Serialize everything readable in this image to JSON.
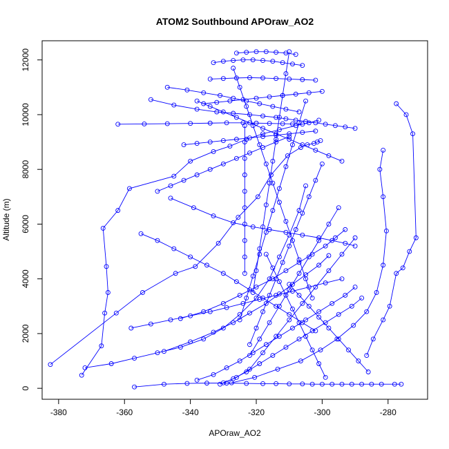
{
  "chart_data": {
    "type": "scatter",
    "mode": "lines+markers",
    "title": "ATOM2 Southbound APOraw_AO2",
    "xlabel": "APOraw_AO2",
    "ylabel": "Altitude (m)",
    "xlim": [
      -385,
      -268
    ],
    "ylim": [
      -400,
      12700
    ],
    "x_ticks": [
      {
        "value": -380,
        "label": "-380"
      },
      {
        "value": -360,
        "label": "-360"
      },
      {
        "value": -340,
        "label": "-340"
      },
      {
        "value": -320,
        "label": "-320"
      },
      {
        "value": -300,
        "label": "-300"
      },
      {
        "value": -280,
        "label": "-280"
      }
    ],
    "y_ticks": [
      {
        "value": 0,
        "label": "0"
      },
      {
        "value": 2000,
        "label": "2000"
      },
      {
        "value": 4000,
        "label": "4000"
      },
      {
        "value": 6000,
        "label": "6000"
      },
      {
        "value": 8000,
        "label": "8000"
      },
      {
        "value": 10000,
        "label": "10000"
      },
      {
        "value": 12000,
        "label": "12000"
      }
    ],
    "grid": false,
    "color": "#0000ff",
    "series": [
      {
        "x": [
          -382.5,
          -362.5,
          -354.5,
          -344.5,
          -338.5,
          -331.5,
          -325.5,
          -319.5,
          -315.5,
          -310.5,
          -306.5,
          -304.5,
          -302.5,
          -301.5,
          -300.5
        ],
        "y": [
          870,
          2750,
          3500,
          4200,
          4450,
          5300,
          6250,
          7000,
          7800,
          8500,
          8800,
          8900,
          8950,
          9000,
          9050
        ]
      },
      {
        "x": [
          -373,
          -367,
          -366,
          -365,
          -365.5,
          -366.5,
          -362,
          -358.5,
          -345,
          -340,
          -333,
          -328,
          -323,
          -318,
          -313,
          -308,
          -304,
          -301
        ],
        "y": [
          480,
          1550,
          2750,
          3500,
          4450,
          5850,
          6500,
          7300,
          7750,
          8300,
          8650,
          8850,
          9100,
          9300,
          9450,
          9600,
          9700,
          9800
        ]
      },
      {
        "x": [
          -372,
          -364,
          -357,
          -350,
          -343,
          -336,
          -330,
          -325,
          -320,
          -316,
          -313,
          -310,
          -307,
          -305
        ],
        "y": [
          750,
          900,
          1100,
          1300,
          1500,
          1800,
          2200,
          2700,
          3300,
          4000,
          4800,
          5600,
          6500,
          7400
        ]
      },
      {
        "x": [
          -357,
          -348,
          -341,
          -335,
          -329,
          -323,
          -318,
          -314,
          -310,
          -306,
          -303,
          -300,
          -297,
          -294,
          -291,
          -288,
          -285,
          -282,
          -278,
          -276
        ],
        "y": [
          50,
          150,
          180,
          190,
          190,
          180,
          170,
          170,
          160,
          160,
          150,
          150,
          150,
          150,
          150,
          150,
          150,
          150,
          150,
          150
        ]
      },
      {
        "x": [
          -277.5,
          -274.5,
          -272.5,
          -271.5,
          -273.5,
          -275.5,
          -277.5,
          -279.5,
          -281.5,
          -284.5,
          -286.5
        ],
        "y": [
          10400,
          10000,
          9300,
          5500,
          5000,
          4400,
          4200,
          3000,
          2500,
          1800,
          1200
        ]
      },
      {
        "x": [
          -281.5,
          -282.5,
          -281.5,
          -280.5,
          -281.5,
          -283.5,
          -286.5,
          -290.5,
          -295.5,
          -300.5,
          -306.5,
          -313.5,
          -320.5,
          -327.5
        ],
        "y": [
          8700,
          8000,
          7000,
          5750,
          4500,
          3500,
          2800,
          2300,
          1800,
          1400,
          1000,
          700,
          400,
          200
        ]
      },
      {
        "x": [
          -352,
          -345,
          -338,
          -332,
          -327,
          -322,
          -318,
          -314,
          -311,
          -308,
          -305,
          -302,
          -299,
          -296,
          -293,
          -290
        ],
        "y": [
          10550,
          10350,
          10200,
          10100,
          10050,
          10000,
          9950,
          9900,
          9850,
          9800,
          9750,
          9700,
          9650,
          9600,
          9550,
          9500
        ]
      },
      {
        "x": [
          -362,
          -354,
          -347,
          -340,
          -334,
          -329,
          -324,
          -320,
          -316,
          -312,
          -309,
          -306
        ],
        "y": [
          9650,
          9660,
          9670,
          9680,
          9690,
          9700,
          9700,
          9690,
          9680,
          9670,
          9660,
          9650
        ]
      },
      {
        "x": [
          -333,
          -330,
          -327,
          -324,
          -321,
          -318,
          -315,
          -312,
          -309,
          -306
        ],
        "y": [
          11900,
          11950,
          11980,
          12000,
          12000,
          11980,
          11950,
          11900,
          11850,
          11800
        ]
      },
      {
        "x": [
          -326,
          -323,
          -320,
          -317,
          -314,
          -311,
          -308
        ],
        "y": [
          12250,
          12280,
          12300,
          12300,
          12280,
          12250,
          12200
        ]
      },
      {
        "x": [
          -334,
          -330,
          -326,
          -322,
          -318,
          -314,
          -310,
          -306,
          -302
        ],
        "y": [
          11300,
          11320,
          11340,
          11350,
          11340,
          11320,
          11300,
          11280,
          11260
        ]
      },
      {
        "x": [
          -336,
          -332,
          -328,
          -324,
          -320,
          -316,
          -312,
          -308,
          -304,
          -300
        ],
        "y": [
          10400,
          10450,
          10500,
          10550,
          10600,
          10650,
          10700,
          10750,
          10800,
          10850
        ]
      },
      {
        "x": [
          -342,
          -338,
          -334,
          -330,
          -326,
          -322,
          -318,
          -314,
          -310,
          -306,
          -302
        ],
        "y": [
          8900,
          8950,
          9000,
          9050,
          9100,
          9150,
          9200,
          9250,
          9300,
          9350,
          9400
        ]
      },
      {
        "x": [
          -346,
          -339,
          -333,
          -327,
          -321,
          -316,
          -311,
          -306,
          -301,
          -297,
          -293,
          -290
        ],
        "y": [
          6950,
          6600,
          6300,
          6050,
          5900,
          5800,
          5700,
          5600,
          5500,
          5400,
          5300,
          5200
        ]
      },
      {
        "x": [
          -343,
          -336,
          -330,
          -325,
          -320,
          -315,
          -311,
          -307,
          -303,
          -299,
          -296,
          -293
        ],
        "y": [
          2550,
          2800,
          3100,
          3400,
          3700,
          4000,
          4300,
          4600,
          4900,
          5200,
          5500,
          5800
        ]
      },
      {
        "x": [
          -348,
          -340,
          -333,
          -327,
          -322,
          -317,
          -313,
          -309,
          -305,
          -301,
          -298
        ],
        "y": [
          1350,
          1700,
          2050,
          2400,
          2750,
          3100,
          3450,
          3800,
          4150,
          4500,
          4850
        ]
      },
      {
        "x": [
          -338,
          -333,
          -329,
          -325,
          -321,
          -317,
          -313,
          -309,
          -305,
          -301,
          -297,
          -293,
          -290
        ],
        "y": [
          300,
          500,
          750,
          1000,
          1300,
          1600,
          1900,
          2200,
          2500,
          2800,
          3100,
          3400,
          3700
        ]
      },
      {
        "x": [
          -331,
          -327,
          -323,
          -319,
          -315,
          -311,
          -307,
          -303,
          -299,
          -295,
          -291,
          -288
        ],
        "y": [
          150,
          350,
          600,
          900,
          1200,
          1500,
          1800,
          2100,
          2400,
          2700,
          3000,
          3300
        ]
      },
      {
        "x": [
          -323.5,
          -323.5,
          -323.5,
          -323.5,
          -323.5,
          -323.5,
          -323.5,
          -323.5,
          -323.5,
          -323.5
        ],
        "y": [
          4200,
          4800,
          5400,
          6000,
          6600,
          7200,
          7800,
          8400,
          9000,
          9600
        ]
      },
      {
        "x": [
          -327,
          -325,
          -323,
          -321,
          -319,
          -317,
          -315,
          -313,
          -311,
          -309,
          -307,
          -305,
          -303
        ],
        "y": [
          11700,
          11000,
          10300,
          9600,
          8900,
          8200,
          7500,
          6800,
          6100,
          5400,
          4700,
          4000,
          3300
        ]
      },
      {
        "x": [
          -310,
          -311,
          -312,
          -313,
          -314,
          -315,
          -316,
          -317,
          -318,
          -319,
          -320,
          -321
        ],
        "y": [
          12300,
          11500,
          10700,
          9900,
          9100,
          8300,
          7500,
          6700,
          5900,
          5100,
          4300,
          3500
        ]
      },
      {
        "x": [
          -305,
          -307,
          -309,
          -311,
          -313,
          -315,
          -317,
          -319,
          -321,
          -323,
          -325
        ],
        "y": [
          10500,
          9700,
          8900,
          8100,
          7300,
          6500,
          5700,
          4900,
          4100,
          3300,
          2500
        ]
      },
      {
        "x": [
          -300,
          -302,
          -304,
          -306,
          -308,
          -310,
          -312,
          -314,
          -316,
          -318,
          -320,
          -322
        ],
        "y": [
          8200,
          7600,
          7000,
          6400,
          5800,
          5200,
          4600,
          4000,
          3400,
          2800,
          2200,
          1600
        ]
      },
      {
        "x": [
          -295,
          -298,
          -301,
          -304,
          -307,
          -310,
          -313,
          -316,
          -319,
          -322
        ],
        "y": [
          6600,
          6000,
          5400,
          4800,
          4200,
          3600,
          3000,
          2400,
          1800,
          1200
        ]
      },
      {
        "x": [
          -290,
          -294,
          -298,
          -302,
          -306,
          -310,
          -314,
          -318,
          -322,
          -326,
          -330
        ],
        "y": [
          5500,
          4900,
          4300,
          3700,
          3100,
          2500,
          1900,
          1300,
          700,
          400,
          200
        ]
      },
      {
        "x": [
          -355,
          -350,
          -345,
          -340,
          -335,
          -330,
          -326,
          -322,
          -318,
          -314,
          -310,
          -306,
          -302
        ],
        "y": [
          5650,
          5400,
          5100,
          4800,
          4500,
          4200,
          3900,
          3600,
          3300,
          3000,
          2700,
          2400,
          2100
        ]
      },
      {
        "x": [
          -358,
          -352,
          -346,
          -340,
          -334,
          -329,
          -324,
          -319,
          -314,
          -309,
          -304,
          -299,
          -294
        ],
        "y": [
          2200,
          2350,
          2500,
          2650,
          2800,
          2950,
          3100,
          3250,
          3400,
          3550,
          3700,
          3850,
          4000
        ]
      },
      {
        "x": [
          -350,
          -346,
          -342,
          -338,
          -334,
          -330,
          -326,
          -322,
          -318,
          -314,
          -310
        ],
        "y": [
          7200,
          7400,
          7600,
          7800,
          8000,
          8200,
          8400,
          8600,
          8800,
          9000,
          9200
        ]
      },
      {
        "x": [
          -338,
          -334,
          -330,
          -326,
          -322,
          -318,
          -314,
          -310,
          -306,
          -302,
          -298,
          -294
        ],
        "y": [
          10500,
          10300,
          10100,
          9900,
          9700,
          9500,
          9300,
          9100,
          8900,
          8700,
          8500,
          8300
        ]
      },
      {
        "x": [
          -347,
          -341,
          -336,
          -331,
          -327,
          -323,
          -319,
          -315,
          -311,
          -307
        ],
        "y": [
          11000,
          10900,
          10800,
          10700,
          10600,
          10500,
          10400,
          10300,
          10200,
          10100
        ]
      },
      {
        "x": [
          -299,
          -301,
          -303,
          -305,
          -307,
          -309,
          -311,
          -313,
          -315,
          -317
        ],
        "y": [
          400,
          900,
          1400,
          1900,
          2400,
          2900,
          3400,
          3900,
          4400,
          4900
        ]
      },
      {
        "x": [
          -286,
          -289,
          -292,
          -295,
          -298,
          -301,
          -304,
          -307,
          -310
        ],
        "y": [
          600,
          1000,
          1400,
          1800,
          2200,
          2600,
          3000,
          3400,
          3800
        ]
      }
    ]
  }
}
